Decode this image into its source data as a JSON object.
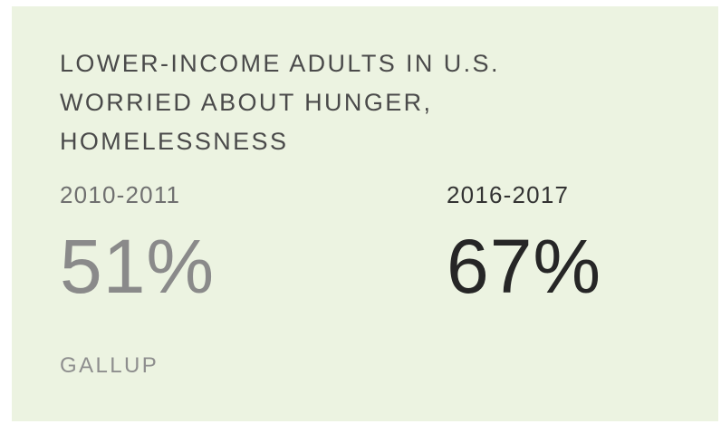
{
  "title_lines": [
    "LOWER-INCOME ADULTS IN U.S.",
    "WORRIED ABOUT HUNGER,",
    "HOMELESSNESS"
  ],
  "comparison": [
    {
      "period": "2010-2011",
      "value": "51%"
    },
    {
      "period": "2016-2017",
      "value": "67%"
    }
  ],
  "source": "GALLUP",
  "colors": {
    "background": "#ecf3e1",
    "earlier_value": "#8a8a8a",
    "later_value": "#262626"
  }
}
